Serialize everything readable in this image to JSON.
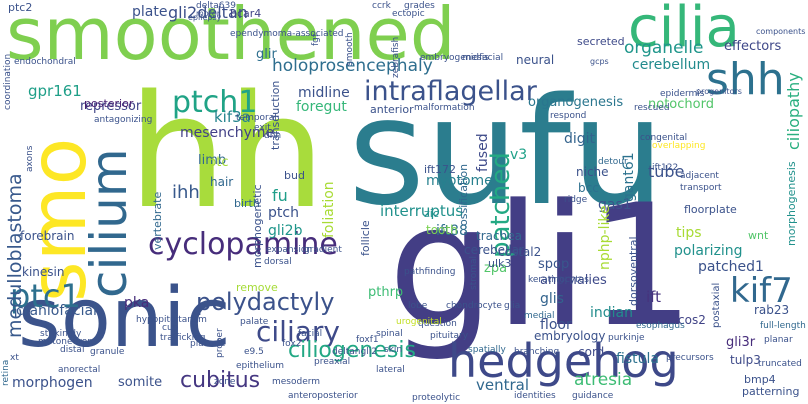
{
  "words": [
    {
      "text": "smoothened",
      "c": "#7fcf4f"
    },
    {
      "text": "sufu",
      "c": "#2b7d8e"
    },
    {
      "text": "hh",
      "c": "#a8dc3c"
    },
    {
      "text": "gli1",
      "c": "#433e85"
    },
    {
      "text": "sonic",
      "c": "#3b538b"
    },
    {
      "text": "smo",
      "c": "#fde725"
    },
    {
      "text": "cilia",
      "c": "#35b779"
    },
    {
      "text": "shh",
      "c": "#2c718e"
    },
    {
      "text": "cilium",
      "c": "#31688e"
    },
    {
      "text": "hedgehog",
      "c": "#3e4989"
    },
    {
      "text": "ptch1",
      "c": "#20a386"
    },
    {
      "text": "intraflagellar",
      "c": "#3b528b"
    },
    {
      "text": "patched",
      "c": "#23a983"
    },
    {
      "text": "cyclopamine",
      "c": "#472d7b"
    },
    {
      "text": "polydactyly",
      "c": "#3b528b"
    },
    {
      "text": "kif7",
      "c": "#31688e"
    },
    {
      "text": "ptc1",
      "c": "#2d708e"
    },
    {
      "text": "ciliary",
      "c": "#3e4a89"
    },
    {
      "text": "ciliogenesis",
      "c": "#22a884"
    },
    {
      "text": "cubitus",
      "c": "#453781"
    },
    {
      "text": "medulloblastoma",
      "c": "#38598c"
    },
    {
      "text": "holoprosencephaly",
      "c": "#2e6e8e"
    },
    {
      "text": "organelle",
      "c": "#1f968b"
    },
    {
      "text": "gli2deltan",
      "c": "#3c4f8a"
    },
    {
      "text": "ciliopathy",
      "c": "#29af7f"
    },
    {
      "text": "effectors",
      "c": "#3f4889"
    },
    {
      "text": "cerebellum",
      "c": "#228b8d"
    },
    {
      "text": "mesenchyme",
      "c": "#424086"
    },
    {
      "text": "midline",
      "c": "#3b528b"
    },
    {
      "text": "foregut",
      "c": "#35b779"
    },
    {
      "text": "notochord",
      "c": "#52c569"
    },
    {
      "text": "organogenesis",
      "c": "#2a768e"
    },
    {
      "text": "kif3a",
      "c": "#25848e"
    },
    {
      "text": "gpr161",
      "c": "#1f9f88"
    },
    {
      "text": "repressor",
      "c": "#404588"
    },
    {
      "text": "plate",
      "c": "#3b528b"
    },
    {
      "text": "glir",
      "c": "#2e6f8e"
    },
    {
      "text": "neural",
      "c": "#3b528b"
    },
    {
      "text": "secreted",
      "c": "#3e4a89"
    },
    {
      "text": "bcar4",
      "c": "#414487"
    },
    {
      "text": "ptc2",
      "c": "#3b528b"
    },
    {
      "text": "posterior",
      "c": "#481f70"
    },
    {
      "text": "limb",
      "c": "#31688e"
    },
    {
      "text": "ihh",
      "c": "#38598c"
    },
    {
      "text": "ptc",
      "c": "#a5db36"
    },
    {
      "text": "hair",
      "c": "#31688e"
    },
    {
      "text": "fu",
      "c": "#1f9e89"
    },
    {
      "text": "ptch",
      "c": "#3b528b"
    },
    {
      "text": "gli2b",
      "c": "#1f968b"
    },
    {
      "text": "interruptus",
      "c": "#21918c"
    },
    {
      "text": "ift88",
      "c": "#2e6e8e"
    },
    {
      "text": "gas1",
      "c": "#3b528b"
    },
    {
      "text": "tube",
      "c": "#3b528b"
    },
    {
      "text": "gant61",
      "c": "#2c728e"
    },
    {
      "text": "digit",
      "c": "#33638d"
    },
    {
      "text": "fused",
      "c": "#3e4a89"
    },
    {
      "text": "myotome",
      "c": "#27808e"
    },
    {
      "text": "v3",
      "c": "#1fa188"
    },
    {
      "text": "bcc",
      "c": "#2d708e"
    },
    {
      "text": "niche",
      "c": "#3b528b"
    },
    {
      "text": "tips",
      "c": "#a8db34"
    },
    {
      "text": "polarizing",
      "c": "#21918c"
    },
    {
      "text": "patched1",
      "c": "#3b528b"
    },
    {
      "text": "ift",
      "c": "#46337e"
    },
    {
      "text": "spop",
      "c": "#39568c"
    },
    {
      "text": "glis",
      "c": "#33638d"
    },
    {
      "text": "indian",
      "c": "#228c8d"
    },
    {
      "text": "anomalies",
      "c": "#3e4a89"
    },
    {
      "text": "embryology",
      "c": "#3b528b"
    },
    {
      "text": "floor",
      "c": "#3b528b"
    },
    {
      "text": "cord",
      "c": "#3e4a89"
    },
    {
      "text": "cos2",
      "c": "#414487"
    },
    {
      "text": "gli3r",
      "c": "#472d7b"
    },
    {
      "text": "rab23",
      "c": "#3b528b"
    },
    {
      "text": "tulp3",
      "c": "#3e4a89"
    },
    {
      "text": "fistula",
      "c": "#2c718e"
    },
    {
      "text": "atresia",
      "c": "#3dbc74"
    },
    {
      "text": "ventral",
      "c": "#31688e"
    },
    {
      "text": "somite",
      "c": "#3b528b"
    },
    {
      "text": "morphogen",
      "c": "#3b528b"
    },
    {
      "text": "craniofacial",
      "c": "#38598c"
    },
    {
      "text": "pka",
      "c": "#472d7b"
    },
    {
      "text": "pthrp",
      "c": "#3dbc74"
    },
    {
      "text": "costal2",
      "c": "#3b528b"
    },
    {
      "text": "zpa",
      "c": "#52c569"
    },
    {
      "text": "kinesin",
      "c": "#3b528b"
    },
    {
      "text": "forebrain",
      "c": "#3b528b"
    },
    {
      "text": "cerebellar",
      "c": "#3b528b"
    },
    {
      "text": "trachea",
      "c": "#31688e"
    },
    {
      "text": "ulk3",
      "c": "#3b528b"
    },
    {
      "text": "ift172",
      "c": "#3b528b"
    },
    {
      "text": "zic",
      "c": "#21918c"
    },
    {
      "text": "tooth",
      "c": "#7ad151"
    },
    {
      "text": "bud",
      "c": "#3b528b"
    },
    {
      "text": "birth",
      "c": "#31688e"
    },
    {
      "text": "remove",
      "c": "#a5db36"
    },
    {
      "text": "bmp4",
      "c": "#3b528b"
    },
    {
      "text": "patterning",
      "c": "#3b528b"
    },
    {
      "text": "wnt",
      "c": "#52c569"
    },
    {
      "text": "floorplate",
      "c": "#3b528b"
    },
    {
      "text": "anterior",
      "c": "#3b528b"
    },
    {
      "text": "transduction",
      "c": "#3b528b"
    },
    {
      "text": "vertebrate",
      "c": "#31688e"
    },
    {
      "text": "morphogenetic",
      "c": "#3b528b"
    },
    {
      "text": "foliation",
      "c": "#a8db34"
    },
    {
      "text": "follicle",
      "c": "#3b528b"
    },
    {
      "text": "ossification",
      "c": "#31688e"
    },
    {
      "text": "nphp-like",
      "c": "#a8db34"
    },
    {
      "text": "dorsoventral",
      "c": "#3b528b"
    },
    {
      "text": "postaxial",
      "c": "#3b528b"
    },
    {
      "text": "morphogenesis",
      "c": "#21918c"
    },
    {
      "text": "epidermis",
      "c": "#3b528b"
    },
    {
      "text": "rescued",
      "c": "#3b528b"
    },
    {
      "text": "transport",
      "c": "#3b528b"
    },
    {
      "text": "adjacent",
      "c": "#3b528b"
    },
    {
      "text": "overlapping",
      "c": "#fde725"
    },
    {
      "text": "congenital",
      "c": "#3b528b"
    },
    {
      "text": "ift122",
      "c": "#3b528b"
    },
    {
      "text": "ridge",
      "c": "#3b528b"
    },
    {
      "text": "respond",
      "c": "#3b528b"
    },
    {
      "text": "detour",
      "c": "#31688e"
    },
    {
      "text": "pathfinding",
      "c": "#3b528b"
    },
    {
      "text": "gradient",
      "c": "#3b528b"
    },
    {
      "text": "chondrocyte",
      "c": "#3b528b"
    },
    {
      "text": "question",
      "c": "#3b528b"
    },
    {
      "text": "pituitary",
      "c": "#3b528b"
    },
    {
      "text": "skin",
      "c": "#3b528b"
    },
    {
      "text": "spatially",
      "c": "#31688e"
    },
    {
      "text": "branching",
      "c": "#3b528b"
    },
    {
      "text": "medial",
      "c": "#31688e"
    },
    {
      "text": "esophagus",
      "c": "#31688e"
    },
    {
      "text": "purkinje",
      "c": "#3b528b"
    },
    {
      "text": "full-length",
      "c": "#31688e"
    },
    {
      "text": "planar",
      "c": "#3b528b"
    },
    {
      "text": "truncated",
      "c": "#3b528b"
    },
    {
      "text": "precursors",
      "c": "#3b528b"
    },
    {
      "text": "identities",
      "c": "#3b528b"
    },
    {
      "text": "guidance",
      "c": "#3b528b"
    },
    {
      "text": "proteolytic",
      "c": "#3b528b"
    },
    {
      "text": "anteroposterior",
      "c": "#3b528b"
    },
    {
      "text": "mesoderm",
      "c": "#3b528b"
    },
    {
      "text": "zone",
      "c": "#3b528b"
    },
    {
      "text": "epithelium",
      "c": "#3b528b"
    },
    {
      "text": "placode",
      "c": "#3b528b"
    },
    {
      "text": "granule",
      "c": "#3b528b"
    },
    {
      "text": "distal",
      "c": "#3b528b"
    },
    {
      "text": "anorectal",
      "c": "#3b528b"
    },
    {
      "text": "xt",
      "c": "#3b528b"
    },
    {
      "text": "retina",
      "c": "#31688e"
    },
    {
      "text": "hypopituitarism",
      "c": "#3b528b"
    },
    {
      "text": "e9.5",
      "c": "#3b528b"
    },
    {
      "text": "proper",
      "c": "#3b528b"
    },
    {
      "text": "deltangli2",
      "c": "#3b528b"
    },
    {
      "text": "lateral",
      "c": "#3b528b"
    },
    {
      "text": "preaxial",
      "c": "#3b528b"
    },
    {
      "text": "spinal",
      "c": "#3b528b"
    },
    {
      "text": "facial",
      "c": "#3b528b"
    },
    {
      "text": "foxf1",
      "c": "#3b528b"
    },
    {
      "text": "fox2",
      "c": "#3b528b"
    },
    {
      "text": "keratinocytes",
      "c": "#3b528b"
    },
    {
      "text": "stromal",
      "c": "#3b528b"
    },
    {
      "text": "glia",
      "c": "#3b528b"
    },
    {
      "text": "lobe",
      "c": "#3b528b"
    },
    {
      "text": "urogenital",
      "c": "#c2df23"
    },
    {
      "text": "dorsal",
      "c": "#3b528b"
    },
    {
      "text": "expansion",
      "c": "#3b528b"
    },
    {
      "text": "palate",
      "c": "#3b528b"
    },
    {
      "text": "cup",
      "c": "#3b528b"
    },
    {
      "text": "trafficking",
      "c": "#3b528b"
    },
    {
      "text": "motoneurons",
      "c": "#3b528b"
    },
    {
      "text": "strikingly",
      "c": "#3b528b"
    },
    {
      "text": "coordination",
      "c": "#3b528b"
    },
    {
      "text": "endochondral",
      "c": "#3b528b"
    },
    {
      "text": "axons",
      "c": "#3b528b"
    },
    {
      "text": "antagonizing",
      "c": "#3b528b"
    },
    {
      "text": "temporal",
      "c": "#3b528b"
    },
    {
      "text": "exit",
      "c": "#3b528b"
    },
    {
      "text": "dhh",
      "c": "#3b528b"
    },
    {
      "text": "malformation",
      "c": "#3b528b"
    },
    {
      "text": "delta639",
      "c": "#3b528b"
    },
    {
      "text": "motor",
      "c": "#3b528b"
    },
    {
      "text": "epilepsy",
      "c": "#3b528b"
    },
    {
      "text": "ependymoma-associated",
      "c": "#3b528b"
    },
    {
      "text": "fgf",
      "c": "#3b528b"
    },
    {
      "text": "smooth",
      "c": "#3b528b"
    },
    {
      "text": "ccrk",
      "c": "#3b528b"
    },
    {
      "text": "ectopic",
      "c": "#3b528b"
    },
    {
      "text": "grades",
      "c": "#3b528b"
    },
    {
      "text": "zebrafish",
      "c": "#3b528b"
    },
    {
      "text": "embryogenesis",
      "c": "#3b528b"
    },
    {
      "text": "midfacial",
      "c": "#3b528b"
    },
    {
      "text": "gcps",
      "c": "#3b528b"
    },
    {
      "text": "components",
      "c": "#3b528b"
    },
    {
      "text": "progenitors",
      "c": "#3b528b"
    },
    {
      "text": "retinal",
      "c": "#3b528b"
    }
  ]
}
